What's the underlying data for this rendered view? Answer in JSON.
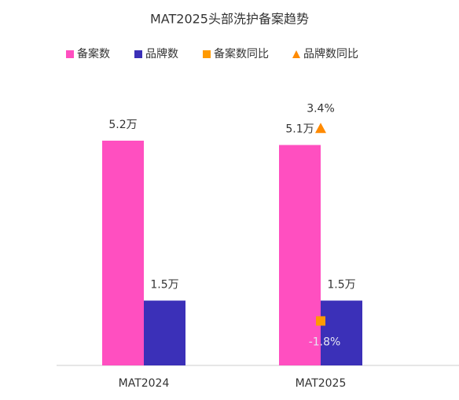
{
  "chart_data": {
    "type": "bar",
    "title": "MAT2025头部洗护备案趋势",
    "categories": [
      "MAT2024",
      "MAT2025"
    ],
    "series": [
      {
        "name": "备案数",
        "type": "bar",
        "color": "#ff4fc0",
        "values": [
          5.2,
          5.1
        ],
        "value_labels": [
          "5.2万",
          "5.1万"
        ]
      },
      {
        "name": "品牌数",
        "type": "bar",
        "color": "#3b30b8",
        "values": [
          1.5,
          1.5
        ],
        "value_labels": [
          "1.5万",
          "1.5万"
        ]
      },
      {
        "name": "备案数同比",
        "type": "square",
        "axis": "y2",
        "color": "#ff9a00",
        "values": [
          null,
          -1.8
        ],
        "value_labels": [
          null,
          "-1.8%"
        ]
      },
      {
        "name": "品牌数同比",
        "type": "triangle",
        "axis": "y2",
        "color": "#ff8a00",
        "values": [
          null,
          3.4
        ],
        "value_labels": [
          null,
          "3.4%"
        ]
      }
    ],
    "ylim": [
      0,
      6.6
    ],
    "y2lim": [
      -3,
      4.7
    ],
    "legend": "top"
  }
}
